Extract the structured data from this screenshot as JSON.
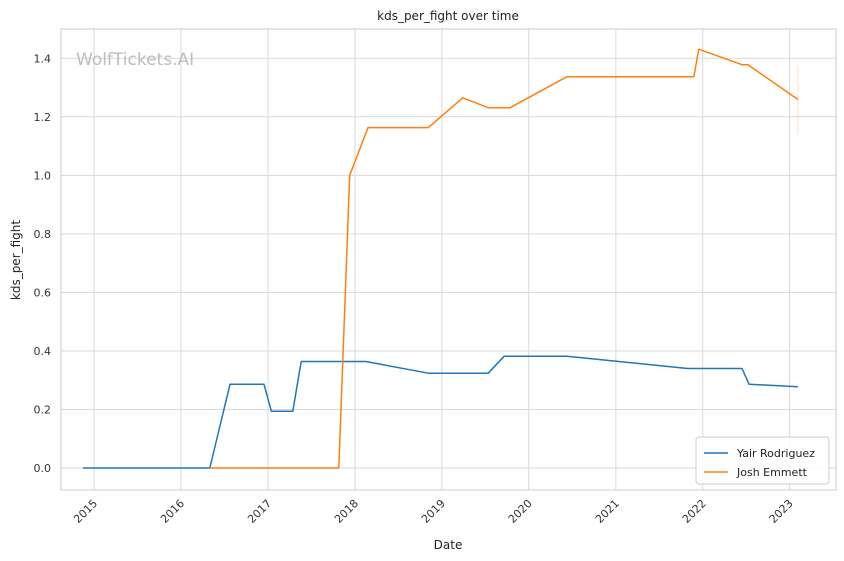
{
  "chart_data": {
    "type": "line",
    "title": "kds_per_fight over time",
    "xlabel": "Date",
    "ylabel": "kds_per_fight",
    "watermark": "WolfTickets.AI",
    "x_ticks": [
      "2015",
      "2016",
      "2017",
      "2018",
      "2019",
      "2020",
      "2021",
      "2022",
      "2023"
    ],
    "y_ticks": [
      "0.0",
      "0.2",
      "0.4",
      "0.6",
      "0.8",
      "1.0",
      "1.2",
      "1.4"
    ],
    "xlim": [
      "2014-08-15",
      "2023-07-15"
    ],
    "ylim": [
      -0.075,
      1.5
    ],
    "grid": true,
    "legend_position": "bottom-right",
    "series": [
      {
        "name": "Yair Rodriguez",
        "color": "#1f77b4",
        "points": [
          [
            "2014-11-15",
            0.0
          ],
          [
            "2016-05-01",
            0.0
          ],
          [
            "2016-07-25",
            0.286
          ],
          [
            "2016-12-15",
            0.286
          ],
          [
            "2017-01-15",
            0.194
          ],
          [
            "2017-04-15",
            0.194
          ],
          [
            "2017-05-20",
            0.364
          ],
          [
            "2018-02-15",
            0.364
          ],
          [
            "2018-11-05",
            0.324
          ],
          [
            "2019-07-15",
            0.324
          ],
          [
            "2019-09-20",
            0.382
          ],
          [
            "2020-06-10",
            0.382
          ],
          [
            "2021-10-30",
            0.34
          ],
          [
            "2022-06-15",
            0.34
          ],
          [
            "2022-07-15",
            0.286
          ],
          [
            "2023-02-05",
            0.278
          ]
        ]
      },
      {
        "name": "Josh Emmett",
        "color": "#ff7f0e",
        "points": [
          [
            "2016-05-01",
            0.0
          ],
          [
            "2017-10-25",
            0.0
          ],
          [
            "2017-12-10",
            1.0
          ],
          [
            "2018-02-25",
            1.163
          ],
          [
            "2018-11-05",
            1.163
          ],
          [
            "2019-03-30",
            1.265
          ],
          [
            "2019-07-15",
            1.231
          ],
          [
            "2019-10-15",
            1.231
          ],
          [
            "2020-06-10",
            1.337
          ],
          [
            "2021-11-25",
            1.337
          ],
          [
            "2021-12-15",
            1.431
          ],
          [
            "2022-06-15",
            1.378
          ],
          [
            "2022-07-10",
            1.378
          ],
          [
            "2023-02-05",
            1.259
          ]
        ]
      }
    ]
  }
}
